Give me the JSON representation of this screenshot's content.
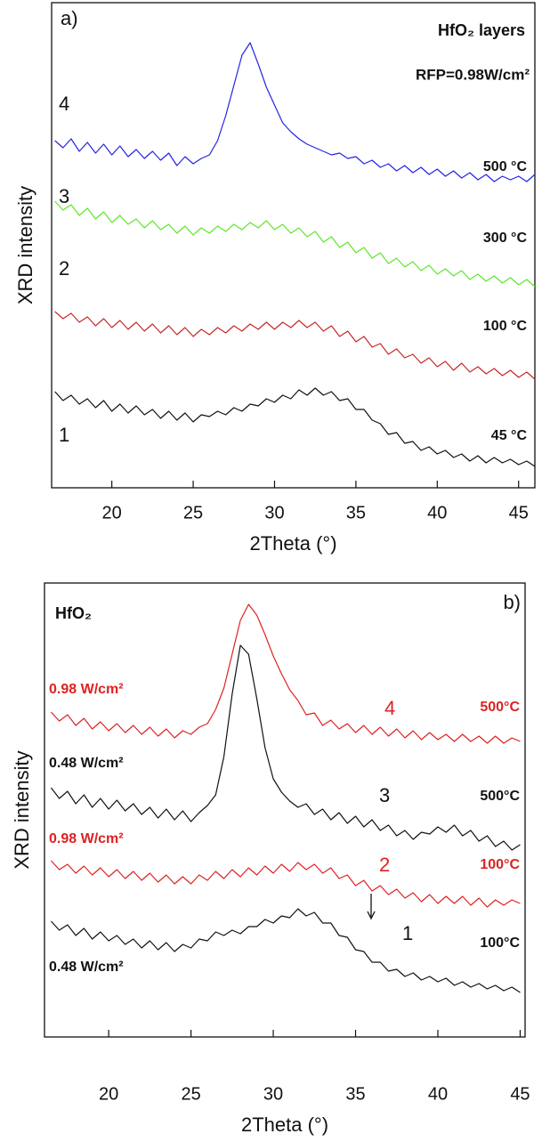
{
  "chart_data": [
    {
      "type": "line",
      "label": "a)",
      "title": "HfO₂ layers",
      "subtitle": "RFP=0.98W/cm²",
      "x_label": "2Theta (°)",
      "y_label": "XRD intensity",
      "xlim": [
        16.3,
        46
      ],
      "ylim": [
        0,
        545
      ],
      "xticks": [
        20,
        25,
        30,
        35,
        40,
        45
      ],
      "x": [
        16.5,
        17,
        17.5,
        18,
        18.5,
        19,
        19.5,
        20,
        20.5,
        21,
        21.5,
        22,
        22.5,
        23,
        23.5,
        24,
        24.5,
        25,
        25.5,
        26,
        26.5,
        27,
        27.5,
        28,
        28.5,
        29,
        29.5,
        30,
        30.5,
        31,
        31.5,
        32,
        32.5,
        33,
        33.5,
        34,
        34.5,
        35,
        35.5,
        36,
        36.5,
        37,
        37.5,
        38,
        38.5,
        39,
        39.5,
        40,
        40.5,
        41,
        41.5,
        42,
        42.5,
        43,
        43.5,
        44,
        44.5,
        45,
        45.5,
        46
      ],
      "series": [
        {
          "name": "4",
          "temperature": "500 °C",
          "color": "#2424e6",
          "values": [
            390,
            382,
            392,
            378,
            388,
            376,
            386,
            374,
            384,
            372,
            380,
            370,
            378,
            368,
            376,
            362,
            372,
            364,
            370,
            374,
            390,
            418,
            452,
            486,
            500,
            476,
            450,
            430,
            410,
            400,
            392,
            386,
            382,
            378,
            374,
            376,
            370,
            372,
            364,
            368,
            360,
            364,
            356,
            362,
            354,
            360,
            352,
            358,
            350,
            356,
            348,
            354,
            346,
            352,
            344,
            350,
            346,
            350,
            344,
            352
          ]
        },
        {
          "name": "3",
          "temperature": "300 °C",
          "color": "#5ee62a",
          "values": [
            322,
            312,
            318,
            306,
            314,
            302,
            310,
            298,
            306,
            296,
            302,
            292,
            300,
            290,
            296,
            286,
            294,
            284,
            292,
            286,
            294,
            288,
            296,
            290,
            298,
            292,
            300,
            290,
            296,
            286,
            292,
            282,
            288,
            276,
            282,
            270,
            276,
            264,
            270,
            258,
            264,
            252,
            258,
            248,
            254,
            244,
            250,
            240,
            246,
            238,
            244,
            234,
            240,
            232,
            238,
            230,
            236,
            228,
            234,
            226
          ]
        },
        {
          "name": "2",
          "temperature": "100 °C",
          "color": "#c62828",
          "values": [
            198,
            190,
            196,
            186,
            192,
            182,
            190,
            180,
            188,
            178,
            186,
            176,
            184,
            174,
            182,
            172,
            180,
            170,
            178,
            172,
            180,
            174,
            182,
            176,
            184,
            178,
            186,
            178,
            186,
            180,
            188,
            180,
            186,
            176,
            182,
            170,
            176,
            164,
            170,
            158,
            162,
            150,
            156,
            146,
            150,
            140,
            146,
            136,
            142,
            132,
            140,
            130,
            136,
            128,
            134,
            126,
            132,
            124,
            130,
            122
          ]
        },
        {
          "name": "1",
          "temperature": "45 °C",
          "color": "#111111",
          "values": [
            108,
            98,
            104,
            94,
            100,
            90,
            98,
            86,
            94,
            84,
            92,
            82,
            88,
            78,
            86,
            76,
            84,
            74,
            82,
            80,
            86,
            82,
            90,
            86,
            94,
            92,
            100,
            96,
            104,
            100,
            110,
            104,
            112,
            104,
            108,
            98,
            100,
            88,
            88,
            76,
            72,
            60,
            62,
            50,
            52,
            42,
            46,
            38,
            42,
            34,
            38,
            30,
            36,
            28,
            34,
            28,
            32,
            26,
            30,
            24
          ]
        }
      ]
    },
    {
      "type": "line",
      "label": "b)",
      "title": "HfO₂",
      "x_label": "2Theta (°)",
      "y_label": "XRD intensity",
      "xlim": [
        16.1,
        45.3
      ],
      "ylim": [
        0,
        510
      ],
      "xticks": [
        20,
        25,
        30,
        35,
        40,
        45
      ],
      "x": [
        16.5,
        17,
        17.5,
        18,
        18.5,
        19,
        19.5,
        20,
        20.5,
        21,
        21.5,
        22,
        22.5,
        23,
        23.5,
        24,
        24.5,
        25,
        25.5,
        26,
        26.5,
        27,
        27.5,
        28,
        28.5,
        29,
        29.5,
        30,
        30.5,
        31,
        31.5,
        32,
        32.5,
        33,
        33.5,
        34,
        34.5,
        35,
        35.5,
        36,
        36.5,
        37,
        37.5,
        38,
        38.5,
        39,
        39.5,
        40,
        40.5,
        41,
        41.5,
        42,
        42.5,
        43,
        43.5,
        44,
        44.5,
        45
      ],
      "series": [
        {
          "name": "4",
          "temperature": "500°C",
          "power": "0.98 W/cm²",
          "color": "#dd2222",
          "values": [
            365,
            355,
            362,
            350,
            358,
            346,
            354,
            344,
            352,
            342,
            350,
            340,
            348,
            338,
            346,
            336,
            344,
            340,
            348,
            352,
            368,
            392,
            430,
            468,
            486,
            474,
            452,
            428,
            408,
            390,
            378,
            362,
            364,
            350,
            356,
            346,
            352,
            342,
            350,
            340,
            348,
            338,
            346,
            336,
            344,
            334,
            342,
            334,
            340,
            332,
            340,
            332,
            338,
            330,
            338,
            330,
            336,
            332
          ]
        },
        {
          "name": "3",
          "temperature": "500°C",
          "power": "0.48 W/cm²",
          "color": "#111111",
          "values": [
            280,
            268,
            276,
            262,
            272,
            258,
            268,
            256,
            266,
            254,
            262,
            250,
            258,
            246,
            256,
            244,
            254,
            242,
            252,
            260,
            272,
            315,
            385,
            440,
            430,
            380,
            325,
            290,
            275,
            265,
            258,
            262,
            250,
            256,
            244,
            252,
            240,
            248,
            236,
            244,
            232,
            238,
            226,
            232,
            222,
            230,
            228,
            236,
            230,
            238,
            226,
            232,
            220,
            226,
            214,
            220,
            210,
            216
          ]
        },
        {
          "name": "2",
          "temperature": "100°C",
          "power": "0.98 W/cm²",
          "color": "#dd2222",
          "values": [
            198,
            188,
            194,
            184,
            192,
            182,
            190,
            180,
            188,
            178,
            186,
            176,
            184,
            174,
            182,
            172,
            180,
            172,
            182,
            176,
            186,
            178,
            188,
            180,
            190,
            182,
            192,
            184,
            194,
            186,
            196,
            188,
            194,
            184,
            190,
            178,
            182,
            170,
            176,
            164,
            170,
            160,
            166,
            156,
            162,
            152,
            160,
            150,
            158,
            150,
            158,
            148,
            156,
            146,
            154,
            148,
            154,
            150
          ]
        },
        {
          "name": "1",
          "temperature": "100°C",
          "power": "0.48 W/cm²",
          "color": "#111111",
          "values": [
            130,
            120,
            126,
            114,
            122,
            110,
            118,
            108,
            114,
            104,
            110,
            100,
            108,
            98,
            106,
            96,
            104,
            100,
            110,
            108,
            118,
            114,
            120,
            116,
            124,
            124,
            132,
            128,
            136,
            134,
            144,
            136,
            140,
            128,
            128,
            114,
            112,
            98,
            96,
            84,
            84,
            74,
            76,
            68,
            72,
            64,
            68,
            62,
            66,
            58,
            62,
            56,
            60,
            54,
            58,
            52,
            56,
            50
          ]
        }
      ]
    }
  ]
}
